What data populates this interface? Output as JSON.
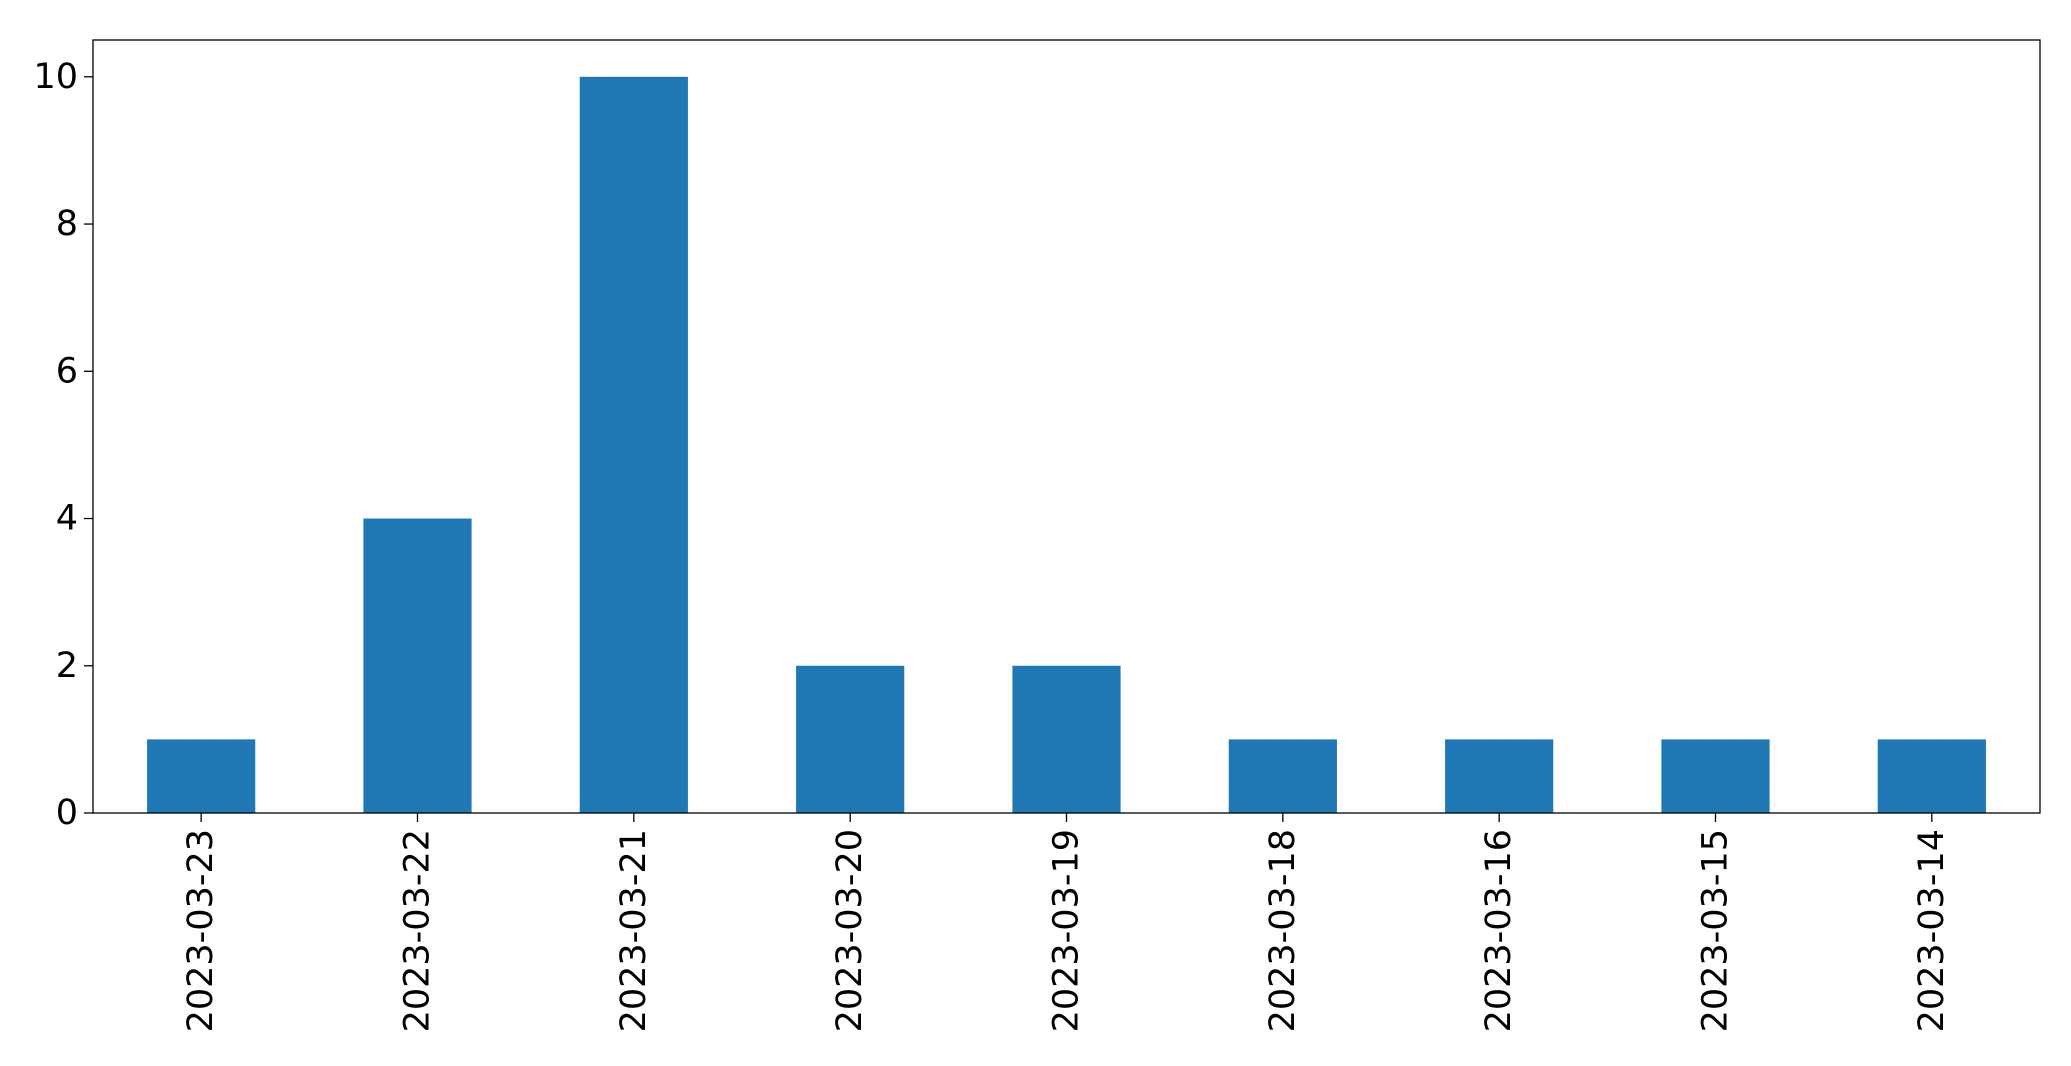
{
  "chart_data": {
    "type": "bar",
    "categories": [
      "2023-03-23",
      "2023-03-22",
      "2023-03-21",
      "2023-03-20",
      "2023-03-19",
      "2023-03-18",
      "2023-03-16",
      "2023-03-15",
      "2023-03-14"
    ],
    "values": [
      1,
      4,
      10,
      2,
      2,
      1,
      1,
      1,
      1
    ],
    "title": "",
    "xlabel": "",
    "ylabel": "",
    "ylim": [
      0,
      10.5
    ],
    "yticks": [
      0,
      2,
      4,
      6,
      8,
      10
    ],
    "grid": false,
    "legend": "none",
    "bar_color": "#1f77b4"
  }
}
